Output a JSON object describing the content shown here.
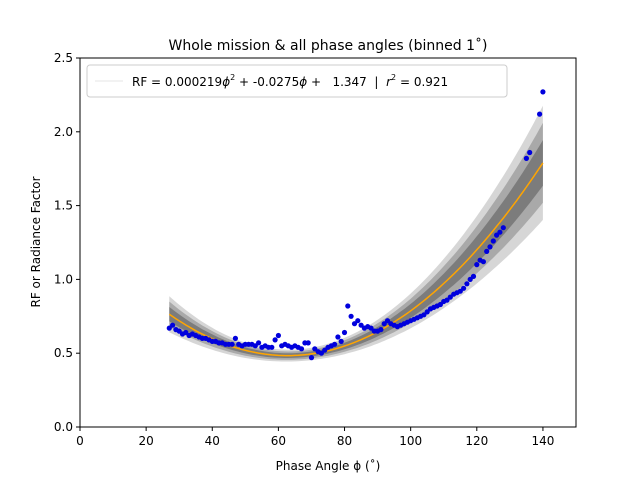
{
  "chart_data": {
    "type": "scatter",
    "title": "Whole mission & all phase angles (binned 1˚)",
    "xlabel": "Phase Angle ϕ (˚)",
    "ylabel": "RF or Radiance Factor",
    "xlim": [
      0,
      150
    ],
    "ylim": [
      0,
      2.5
    ],
    "xticks": [
      "0",
      "20",
      "40",
      "60",
      "80",
      "100",
      "120",
      "140"
    ],
    "yticks": [
      "0.0",
      "0.5",
      "1.0",
      "1.5",
      "2.0",
      "2.5"
    ],
    "grid": false,
    "legend_position": "top-left",
    "legend": {
      "prefix": "RF = 0.000219",
      "phi_sq": "ϕ",
      "sup2": "2",
      "mid": " + -0.0275",
      "phi": "ϕ",
      "const": " +   1.347  |  ",
      "r": "r",
      "r_sup": "2",
      "r_val": " = 0.921"
    },
    "fit": {
      "a": 0.000219,
      "b": -0.0275,
      "c": 1.347,
      "x_range": [
        27,
        140
      ],
      "color": "#ffa500"
    },
    "points_color": "#0000dd",
    "points": [
      [
        27,
        0.67
      ],
      [
        28,
        0.69
      ],
      [
        29,
        0.66
      ],
      [
        30,
        0.65
      ],
      [
        31,
        0.63
      ],
      [
        32,
        0.64
      ],
      [
        33,
        0.62
      ],
      [
        34,
        0.63
      ],
      [
        35,
        0.62
      ],
      [
        36,
        0.61
      ],
      [
        37,
        0.6
      ],
      [
        38,
        0.6
      ],
      [
        39,
        0.59
      ],
      [
        40,
        0.58
      ],
      [
        41,
        0.58
      ],
      [
        42,
        0.57
      ],
      [
        43,
        0.57
      ],
      [
        44,
        0.56
      ],
      [
        45,
        0.56
      ],
      [
        46,
        0.56
      ],
      [
        47,
        0.6
      ],
      [
        48,
        0.56
      ],
      [
        49,
        0.55
      ],
      [
        50,
        0.56
      ],
      [
        51,
        0.56
      ],
      [
        52,
        0.56
      ],
      [
        53,
        0.55
      ],
      [
        54,
        0.57
      ],
      [
        55,
        0.54
      ],
      [
        56,
        0.55
      ],
      [
        57,
        0.54
      ],
      [
        58,
        0.54
      ],
      [
        59,
        0.59
      ],
      [
        60,
        0.62
      ],
      [
        61,
        0.55
      ],
      [
        62,
        0.56
      ],
      [
        63,
        0.55
      ],
      [
        64,
        0.54
      ],
      [
        65,
        0.55
      ],
      [
        66,
        0.54
      ],
      [
        67,
        0.53
      ],
      [
        68,
        0.57
      ],
      [
        69,
        0.57
      ],
      [
        70,
        0.47
      ],
      [
        71,
        0.53
      ],
      [
        72,
        0.51
      ],
      [
        73,
        0.5
      ],
      [
        74,
        0.52
      ],
      [
        75,
        0.54
      ],
      [
        76,
        0.55
      ],
      [
        77,
        0.56
      ],
      [
        78,
        0.61
      ],
      [
        79,
        0.58
      ],
      [
        80,
        0.64
      ],
      [
        81,
        0.82
      ],
      [
        82,
        0.75
      ],
      [
        83,
        0.7
      ],
      [
        84,
        0.72
      ],
      [
        85,
        0.69
      ],
      [
        86,
        0.67
      ],
      [
        87,
        0.68
      ],
      [
        88,
        0.67
      ],
      [
        89,
        0.65
      ],
      [
        90,
        0.65
      ],
      [
        91,
        0.66
      ],
      [
        92,
        0.7
      ],
      [
        93,
        0.72
      ],
      [
        94,
        0.7
      ],
      [
        95,
        0.69
      ],
      [
        96,
        0.68
      ],
      [
        97,
        0.69
      ],
      [
        98,
        0.7
      ],
      [
        99,
        0.71
      ],
      [
        100,
        0.72
      ],
      [
        101,
        0.73
      ],
      [
        102,
        0.74
      ],
      [
        103,
        0.75
      ],
      [
        104,
        0.76
      ],
      [
        105,
        0.78
      ],
      [
        106,
        0.8
      ],
      [
        107,
        0.81
      ],
      [
        108,
        0.82
      ],
      [
        109,
        0.83
      ],
      [
        110,
        0.85
      ],
      [
        111,
        0.86
      ],
      [
        112,
        0.88
      ],
      [
        113,
        0.9
      ],
      [
        114,
        0.91
      ],
      [
        115,
        0.92
      ],
      [
        116,
        0.94
      ],
      [
        117,
        0.97
      ],
      [
        118,
        1.0
      ],
      [
        119,
        1.02
      ],
      [
        120,
        1.1
      ],
      [
        121,
        1.13
      ],
      [
        122,
        1.12
      ],
      [
        123,
        1.19
      ],
      [
        124,
        1.22
      ],
      [
        125,
        1.26
      ],
      [
        126,
        1.3
      ],
      [
        127,
        1.32
      ],
      [
        128,
        1.35
      ],
      [
        135,
        1.82
      ],
      [
        136,
        1.86
      ],
      [
        139,
        2.12
      ],
      [
        140,
        2.27
      ]
    ]
  }
}
